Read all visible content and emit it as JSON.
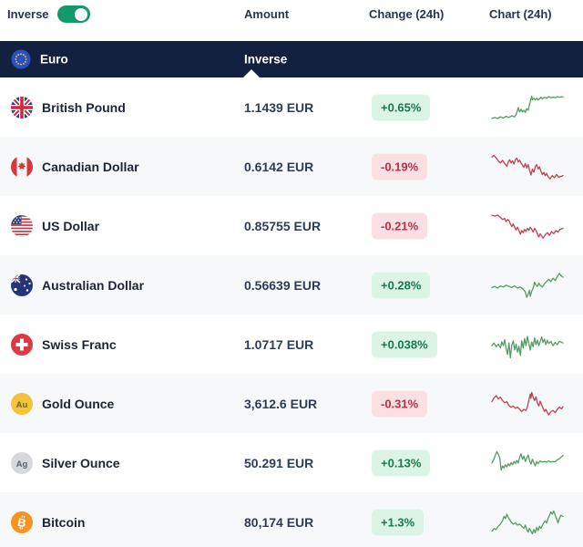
{
  "toolbar": {
    "inverse_label": "Inverse",
    "toggle_on": true,
    "columns": {
      "amount": "Amount",
      "change": "Change (24h)",
      "chart": "Chart (24h)"
    }
  },
  "base_row": {
    "name": "Euro",
    "icon": "eu-flag",
    "amount_column_value": "Inverse"
  },
  "colors": {
    "navy": "#122140",
    "toggle_green": "#149a6a",
    "badge_up_bg": "#dcf4e6",
    "badge_up_text": "#187a4c",
    "badge_down_bg": "#fbe0e3",
    "badge_down_text": "#b73049",
    "spark_up": "#549b64",
    "spark_down": "#bc4256",
    "row_alt_bg": "#f7f8fa"
  },
  "rows": [
    {
      "name": "British Pound",
      "icon": "gb-flag",
      "amount": "1.1439 EUR",
      "change": "+0.65%",
      "direction": "up",
      "spark_points": [
        [
          0,
          25
        ],
        [
          4,
          24
        ],
        [
          8,
          25
        ],
        [
          12,
          23.5
        ],
        [
          16,
          24.5
        ],
        [
          20,
          23
        ],
        [
          24,
          24
        ],
        [
          28,
          22.5
        ],
        [
          32,
          23.5
        ],
        [
          35,
          20
        ],
        [
          37,
          15
        ],
        [
          39,
          19
        ],
        [
          41,
          16.5
        ],
        [
          43,
          19
        ],
        [
          45,
          17.5
        ],
        [
          47,
          19.5
        ],
        [
          49,
          16
        ],
        [
          51,
          17.5
        ],
        [
          53,
          12
        ],
        [
          55,
          7
        ],
        [
          56,
          4.5
        ],
        [
          57,
          8
        ],
        [
          59,
          6.5
        ],
        [
          61,
          8
        ],
        [
          63,
          6.5
        ],
        [
          65,
          8
        ],
        [
          67,
          7
        ],
        [
          69,
          5.5
        ],
        [
          71,
          7
        ],
        [
          74,
          5.5
        ],
        [
          77,
          6.5
        ],
        [
          80,
          5
        ],
        [
          83,
          6
        ],
        [
          86,
          5.5
        ],
        [
          89,
          6
        ],
        [
          92,
          5
        ],
        [
          95,
          5.5
        ],
        [
          100,
          5
        ]
      ]
    },
    {
      "name": "Canadian Dollar",
      "icon": "ca-flag",
      "amount": "0.6142 EUR",
      "change": "-0.19%",
      "direction": "down",
      "spark_points": [
        [
          0,
          6
        ],
        [
          3,
          4.5
        ],
        [
          6,
          7
        ],
        [
          9,
          9.5
        ],
        [
          12,
          11.5
        ],
        [
          15,
          9
        ],
        [
          18,
          12
        ],
        [
          21,
          14.5
        ],
        [
          23,
          10.5
        ],
        [
          25,
          8.5
        ],
        [
          27,
          11.5
        ],
        [
          29,
          9.5
        ],
        [
          31,
          12.5
        ],
        [
          33,
          8.5
        ],
        [
          35,
          7
        ],
        [
          37,
          10.5
        ],
        [
          39,
          9
        ],
        [
          42,
          12.5
        ],
        [
          45,
          15.5
        ],
        [
          47,
          12
        ],
        [
          49,
          16
        ],
        [
          51,
          13
        ],
        [
          53,
          18
        ],
        [
          55,
          22.5
        ],
        [
          57,
          17
        ],
        [
          59,
          20
        ],
        [
          61,
          15
        ],
        [
          63,
          13
        ],
        [
          65,
          17
        ],
        [
          67,
          15
        ],
        [
          69,
          19
        ],
        [
          71,
          22
        ],
        [
          73,
          20
        ],
        [
          75,
          23
        ],
        [
          77,
          21
        ],
        [
          79,
          24
        ],
        [
          82,
          26
        ],
        [
          85,
          23
        ],
        [
          88,
          25
        ],
        [
          91,
          22
        ],
        [
          94,
          24.5
        ],
        [
          100,
          23
        ]
      ]
    },
    {
      "name": "US Dollar",
      "icon": "us-flag",
      "amount": "0.85755 EUR",
      "change": "-0.21%",
      "direction": "down",
      "spark_points": [
        [
          0,
          5
        ],
        [
          4,
          6
        ],
        [
          8,
          5
        ],
        [
          12,
          7
        ],
        [
          15,
          9
        ],
        [
          18,
          8
        ],
        [
          20,
          11
        ],
        [
          22,
          9
        ],
        [
          24,
          10
        ],
        [
          26,
          13
        ],
        [
          28,
          15.5
        ],
        [
          30,
          13
        ],
        [
          32,
          16
        ],
        [
          34,
          18.5
        ],
        [
          36,
          16
        ],
        [
          38,
          19
        ],
        [
          40,
          22.5
        ],
        [
          42,
          19
        ],
        [
          44,
          21
        ],
        [
          46,
          18
        ],
        [
          48,
          20
        ],
        [
          50,
          17
        ],
        [
          52,
          19
        ],
        [
          54,
          16
        ],
        [
          56,
          18
        ],
        [
          58,
          20.5
        ],
        [
          60,
          17
        ],
        [
          62,
          19
        ],
        [
          64,
          22
        ],
        [
          66,
          25
        ],
        [
          68,
          22
        ],
        [
          70,
          24
        ],
        [
          72,
          26
        ],
        [
          75,
          23
        ],
        [
          78,
          21
        ],
        [
          81,
          23.5
        ],
        [
          84,
          20
        ],
        [
          87,
          22
        ],
        [
          90,
          19
        ],
        [
          93,
          20.5
        ],
        [
          96,
          18
        ],
        [
          100,
          17
        ]
      ]
    },
    {
      "name": "Australian Dollar",
      "icon": "au-flag",
      "amount": "0.56639 EUR",
      "change": "+0.28%",
      "direction": "up",
      "spark_points": [
        [
          0,
          17
        ],
        [
          4,
          16
        ],
        [
          8,
          17.5
        ],
        [
          12,
          15.5
        ],
        [
          16,
          16.5
        ],
        [
          20,
          15
        ],
        [
          24,
          16
        ],
        [
          28,
          17
        ],
        [
          32,
          15.5
        ],
        [
          36,
          17.5
        ],
        [
          40,
          16.5
        ],
        [
          44,
          18.5
        ],
        [
          47,
          21
        ],
        [
          49,
          26
        ],
        [
          51,
          23
        ],
        [
          53,
          19.5
        ],
        [
          54,
          25
        ],
        [
          56,
          20.5
        ],
        [
          58,
          17.5
        ],
        [
          60,
          12
        ],
        [
          62,
          14.5
        ],
        [
          64,
          16
        ],
        [
          66,
          13
        ],
        [
          68,
          15
        ],
        [
          71,
          16.5
        ],
        [
          74,
          13.5
        ],
        [
          77,
          11.5
        ],
        [
          80,
          9.5
        ],
        [
          83,
          11.5
        ],
        [
          86,
          8.5
        ],
        [
          89,
          10.5
        ],
        [
          92,
          7
        ],
        [
          95,
          4
        ],
        [
          97,
          6
        ],
        [
          100,
          7.5
        ]
      ]
    },
    {
      "name": "Swiss Franc",
      "icon": "ch-flag",
      "amount": "1.0717 EUR",
      "change": "+0.038%",
      "direction": "up",
      "spark_points": [
        [
          0,
          16
        ],
        [
          3,
          13.5
        ],
        [
          6,
          17
        ],
        [
          9,
          14.5
        ],
        [
          12,
          18
        ],
        [
          14,
          12.5
        ],
        [
          16,
          16
        ],
        [
          18,
          10.5
        ],
        [
          20,
          19
        ],
        [
          22,
          24
        ],
        [
          24,
          13.5
        ],
        [
          26,
          27
        ],
        [
          28,
          15.5
        ],
        [
          30,
          11.5
        ],
        [
          32,
          20
        ],
        [
          34,
          14.5
        ],
        [
          36,
          22
        ],
        [
          38,
          16.5
        ],
        [
          40,
          25
        ],
        [
          42,
          11.5
        ],
        [
          44,
          18
        ],
        [
          46,
          9.5
        ],
        [
          48,
          16
        ],
        [
          50,
          7.5
        ],
        [
          52,
          14
        ],
        [
          54,
          20
        ],
        [
          56,
          12.5
        ],
        [
          58,
          17
        ],
        [
          60,
          9
        ],
        [
          62,
          15
        ],
        [
          64,
          11
        ],
        [
          66,
          16
        ],
        [
          68,
          12
        ],
        [
          70,
          8
        ],
        [
          72,
          13
        ],
        [
          74,
          10
        ],
        [
          76,
          15
        ],
        [
          78,
          11
        ],
        [
          80,
          14
        ],
        [
          83,
          12
        ],
        [
          86,
          16
        ],
        [
          89,
          13
        ],
        [
          92,
          15
        ],
        [
          95,
          12
        ],
        [
          100,
          13.5
        ]
      ]
    },
    {
      "name": "Gold Ounce",
      "icon": "gold-icon",
      "amount": "3,612.6 EUR",
      "change": "-0.31%",
      "direction": "down",
      "spark_points": [
        [
          0,
          13
        ],
        [
          3,
          9.5
        ],
        [
          6,
          7.5
        ],
        [
          9,
          10.5
        ],
        [
          12,
          9
        ],
        [
          15,
          12
        ],
        [
          18,
          14
        ],
        [
          21,
          13
        ],
        [
          24,
          16.5
        ],
        [
          27,
          18
        ],
        [
          30,
          17
        ],
        [
          33,
          19
        ],
        [
          36,
          18
        ],
        [
          39,
          20
        ],
        [
          42,
          22
        ],
        [
          45,
          20
        ],
        [
          48,
          21
        ],
        [
          50,
          17.5
        ],
        [
          52,
          11.5
        ],
        [
          54,
          6
        ],
        [
          55,
          10
        ],
        [
          56,
          4.5
        ],
        [
          58,
          9
        ],
        [
          60,
          12
        ],
        [
          62,
          8.5
        ],
        [
          64,
          14
        ],
        [
          66,
          17
        ],
        [
          68,
          12.5
        ],
        [
          70,
          16
        ],
        [
          72,
          19
        ],
        [
          74,
          22
        ],
        [
          76,
          20
        ],
        [
          78,
          23
        ],
        [
          80,
          25
        ],
        [
          83,
          22
        ],
        [
          86,
          21
        ],
        [
          89,
          23
        ],
        [
          92,
          20
        ],
        [
          95,
          18
        ],
        [
          98,
          19.5
        ],
        [
          100,
          17.5
        ]
      ]
    },
    {
      "name": "Silver Ounce",
      "icon": "silver-icon",
      "amount": "50.291 EUR",
      "change": "+0.13%",
      "direction": "up",
      "spark_points": [
        [
          0,
          15
        ],
        [
          3,
          11
        ],
        [
          5,
          7.5
        ],
        [
          7,
          4.5
        ],
        [
          9,
          7
        ],
        [
          11,
          10
        ],
        [
          13,
          21.5
        ],
        [
          15,
          17.5
        ],
        [
          17,
          19.5
        ],
        [
          19,
          16.5
        ],
        [
          21,
          18.5
        ],
        [
          23,
          15.5
        ],
        [
          25,
          17.5
        ],
        [
          27,
          14.5
        ],
        [
          29,
          16.5
        ],
        [
          31,
          13.5
        ],
        [
          33,
          15.5
        ],
        [
          35,
          12.5
        ],
        [
          37,
          15
        ],
        [
          39,
          9.5
        ],
        [
          41,
          6.5
        ],
        [
          43,
          11.5
        ],
        [
          45,
          8.5
        ],
        [
          47,
          13.5
        ],
        [
          49,
          10.5
        ],
        [
          51,
          7.5
        ],
        [
          53,
          12.5
        ],
        [
          55,
          16
        ],
        [
          57,
          11.5
        ],
        [
          59,
          14.5
        ],
        [
          61,
          17.5
        ],
        [
          63,
          13.5
        ],
        [
          65,
          15.5
        ],
        [
          68,
          13
        ],
        [
          71,
          14
        ],
        [
          74,
          13.5
        ],
        [
          77,
          14
        ],
        [
          80,
          13
        ],
        [
          83,
          14
        ],
        [
          86,
          13.5
        ],
        [
          89,
          13.8
        ],
        [
          92,
          12
        ],
        [
          95,
          11
        ],
        [
          98,
          9
        ],
        [
          100,
          8
        ]
      ]
    },
    {
      "name": "Bitcoin",
      "icon": "btc-icon",
      "amount": "80,174 EUR",
      "change": "+1.3%",
      "direction": "up",
      "spark_points": [
        [
          0,
          23
        ],
        [
          3,
          20.5
        ],
        [
          6,
          21.5
        ],
        [
          9,
          18.5
        ],
        [
          12,
          16.5
        ],
        [
          15,
          13.5
        ],
        [
          17,
          9.5
        ],
        [
          19,
          11.5
        ],
        [
          21,
          7.5
        ],
        [
          23,
          10.5
        ],
        [
          25,
          12.5
        ],
        [
          27,
          14.5
        ],
        [
          30,
          16.5
        ],
        [
          33,
          15.5
        ],
        [
          36,
          17.5
        ],
        [
          39,
          16.5
        ],
        [
          42,
          18.5
        ],
        [
          45,
          20.5
        ],
        [
          47,
          17.5
        ],
        [
          49,
          21.5
        ],
        [
          51,
          24
        ],
        [
          53,
          20.5
        ],
        [
          55,
          23
        ],
        [
          57,
          25.5
        ],
        [
          59,
          21.5
        ],
        [
          61,
          24.5
        ],
        [
          63,
          19.5
        ],
        [
          65,
          22.5
        ],
        [
          67,
          18.5
        ],
        [
          69,
          20.5
        ],
        [
          72,
          16.5
        ],
        [
          75,
          13.5
        ],
        [
          77,
          15.5
        ],
        [
          79,
          11.5
        ],
        [
          81,
          8.5
        ],
        [
          83,
          5.5
        ],
        [
          85,
          7.5
        ],
        [
          87,
          4.5
        ],
        [
          89,
          8.5
        ],
        [
          91,
          11.5
        ],
        [
          93,
          15.5
        ],
        [
          95,
          11.5
        ],
        [
          97,
          8.5
        ],
        [
          100,
          9.5
        ]
      ]
    }
  ]
}
